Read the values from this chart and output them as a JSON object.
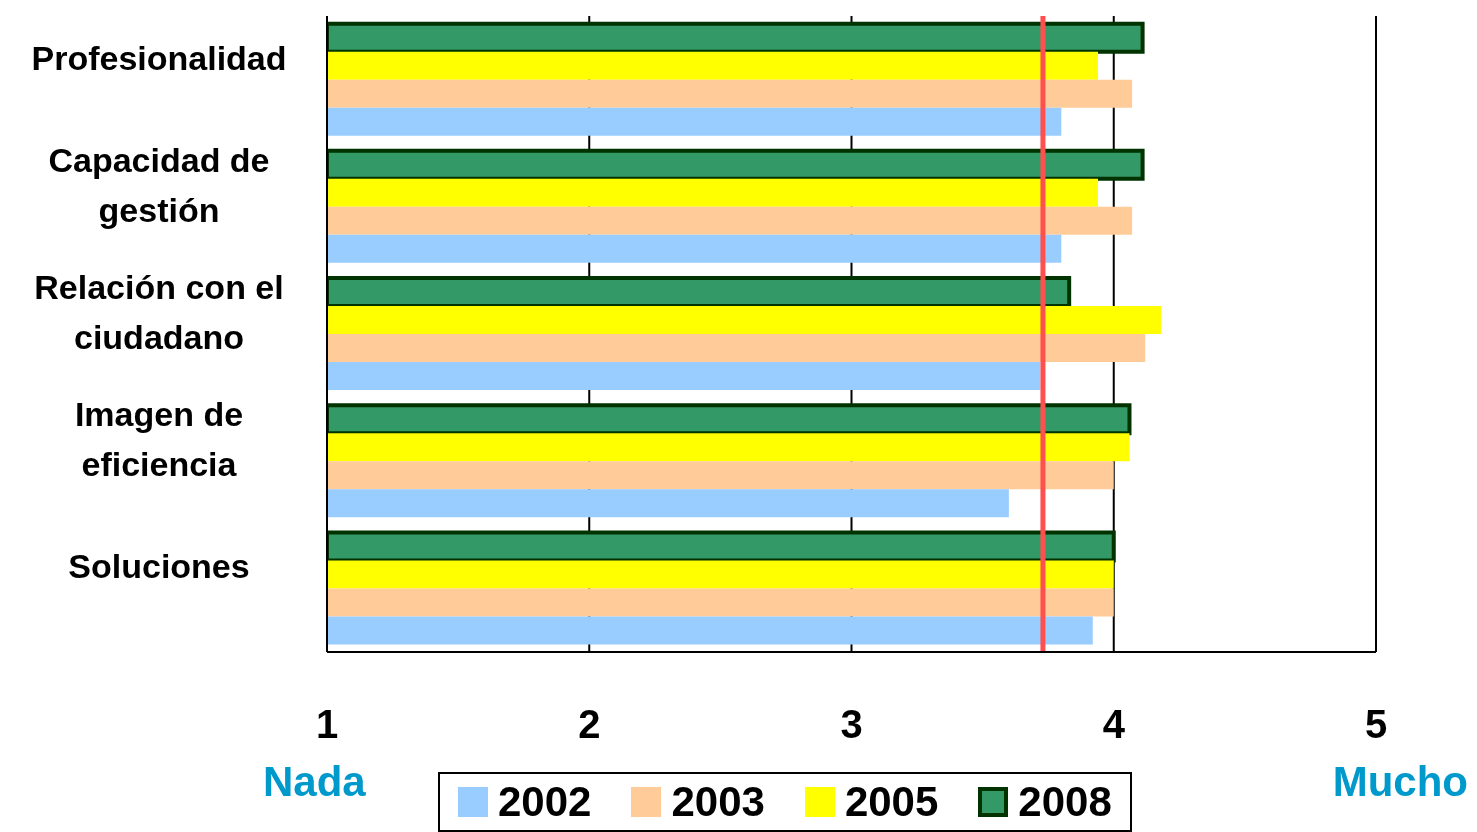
{
  "chart_data": {
    "type": "bar",
    "orientation": "horizontal",
    "categories": [
      "Profesionalidad",
      "Capacidad de gestión",
      "Relación con el ciudadano",
      "Imagen de eficiencia",
      "Soluciones"
    ],
    "series": [
      {
        "name": "2002",
        "color": "#99ccff",
        "values": [
          3.8,
          3.8,
          3.72,
          3.6,
          3.92
        ]
      },
      {
        "name": "2003",
        "color": "#ffcc99",
        "values": [
          4.07,
          4.07,
          4.12,
          4.0,
          4.0
        ]
      },
      {
        "name": "2005",
        "color": "#ffff00",
        "values": [
          3.94,
          3.94,
          4.18,
          4.06,
          4.0
        ]
      },
      {
        "name": "2008",
        "color": "#339966",
        "values": [
          4.11,
          4.11,
          3.83,
          4.06,
          4.0
        ]
      }
    ],
    "xlim": [
      1,
      5
    ],
    "xticks": [
      1,
      2,
      3,
      4,
      5
    ],
    "grid": "x",
    "legend": "bottom",
    "ref_lines": [
      {
        "axis": "x",
        "value": 3.73,
        "color": "#ff5050"
      }
    ],
    "annotations": [
      "Nada",
      "Mucho"
    ]
  }
}
